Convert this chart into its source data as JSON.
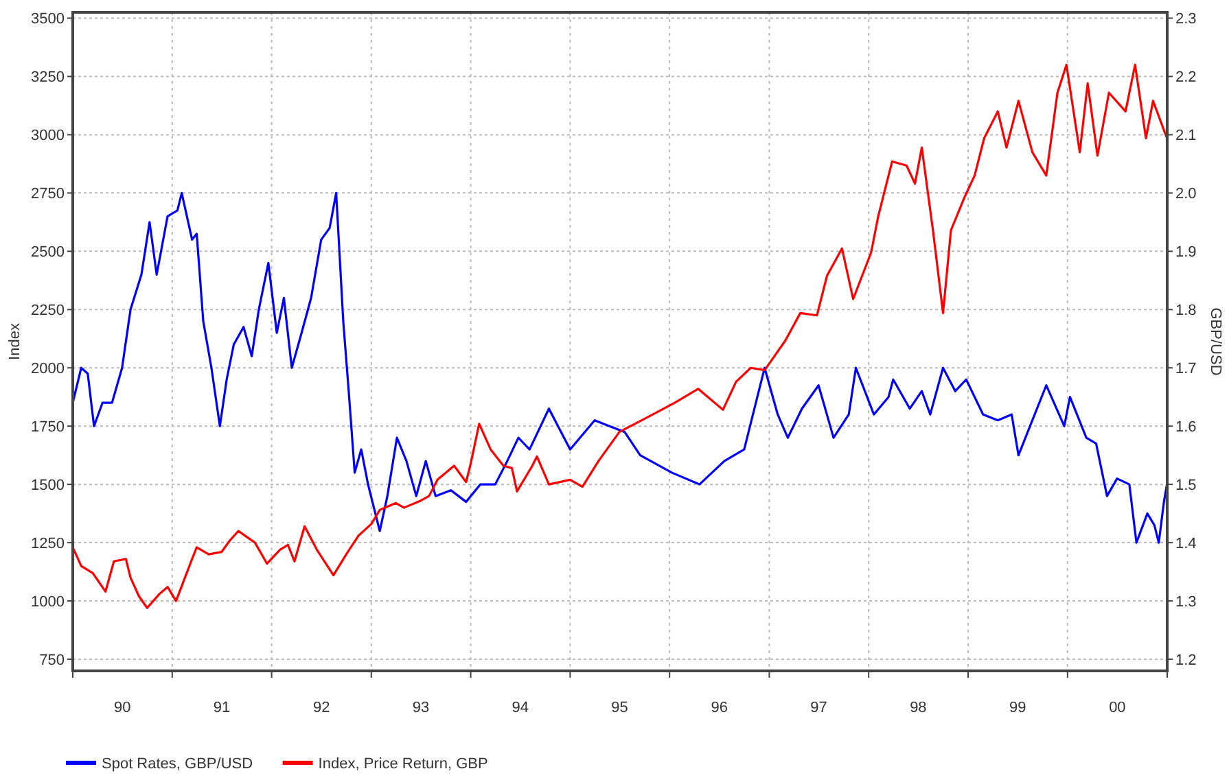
{
  "chart_data": {
    "type": "line",
    "ylabel": "Index",
    "y2label": "GBP/USD",
    "legend": "bottom",
    "grid": true,
    "marker": "none",
    "line_style": "solid",
    "xlim": [
      "1990-01-01",
      "2001-01-01"
    ],
    "xticks": [
      {
        "value": "1990-01-01",
        "label": null
      },
      {
        "value": "1990-07-02",
        "label": "90"
      },
      {
        "value": "1991-01-01",
        "label": null
      },
      {
        "value": "1991-07-02",
        "label": "91"
      },
      {
        "value": "1992-01-01",
        "label": null
      },
      {
        "value": "1992-07-02",
        "label": "92"
      },
      {
        "value": "1993-01-01",
        "label": null
      },
      {
        "value": "1993-07-02",
        "label": "93"
      },
      {
        "value": "1994-01-01",
        "label": null
      },
      {
        "value": "1994-07-02",
        "label": "94"
      },
      {
        "value": "1995-01-01",
        "label": null
      },
      {
        "value": "1995-07-02",
        "label": "95"
      },
      {
        "value": "1996-01-01",
        "label": null
      },
      {
        "value": "1996-07-02",
        "label": "96"
      },
      {
        "value": "1997-01-01",
        "label": null
      },
      {
        "value": "1997-07-02",
        "label": "97"
      },
      {
        "value": "1998-01-01",
        "label": null
      },
      {
        "value": "1998-07-02",
        "label": "98"
      },
      {
        "value": "1999-01-01",
        "label": null
      },
      {
        "value": "1999-07-02",
        "label": "99"
      },
      {
        "value": "2000-01-01",
        "label": null
      },
      {
        "value": "2000-07-02",
        "label": "00"
      },
      {
        "value": "2001-01-01",
        "label": null
      }
    ],
    "ylim": [
      700,
      3525
    ],
    "yticks": [
      750,
      1000,
      1250,
      1500,
      1750,
      2000,
      2250,
      2500,
      2750,
      3000,
      3250,
      3500
    ],
    "y2lim": [
      1.18,
      2.31
    ],
    "y2ticks": [
      1.2,
      1.3,
      1.4,
      1.5,
      1.6,
      1.7,
      1.8,
      1.9,
      {
        "value": 2,
        "label": "2.0"
      },
      2.1,
      2.2,
      2.3
    ],
    "series": [
      {
        "name": "Spot Rates, GBP/USD",
        "color": "#0000ff",
        "axis": "y2",
        "x": [
          "1990-01-01",
          "1990-02-01",
          "1990-02-25",
          "1990-03-20",
          "1990-04-20",
          "1990-05-25",
          "1990-07-01",
          "1990-08-01",
          "1990-09-10",
          "1990-10-10",
          "1990-11-05",
          "1990-12-15",
          "1991-01-20",
          "1991-02-05",
          "1991-03-15",
          "1991-04-01",
          "1991-04-25",
          "1991-05-25",
          "1991-06-25",
          "1991-07-20",
          "1991-08-15",
          "1991-09-20",
          "1991-10-20",
          "1991-11-15",
          "1991-12-20",
          "1992-01-20",
          "1992-02-15",
          "1992-03-15",
          "1992-04-20",
          "1992-05-25",
          "1992-07-01",
          "1992-08-01",
          "1992-08-25",
          "1992-09-20",
          "1992-10-10",
          "1992-11-01",
          "1992-11-25",
          "1992-12-20",
          "1993-02-01",
          "1993-03-01",
          "1993-04-05",
          "1993-05-10",
          "1993-06-15",
          "1993-07-20",
          "1993-08-25",
          "1993-10-20",
          "1993-12-15",
          "1994-02-05",
          "1994-04-01",
          "1994-05-15",
          "1994-06-25",
          "1994-08-05",
          "1994-10-15",
          "1995-01-01",
          "1995-04-01",
          "1995-05-25",
          "1995-07-20",
          "1995-09-15",
          "1996-01-10",
          "1996-04-20",
          "1996-07-20",
          "1996-10-01",
          "1996-12-15",
          "1997-02-01",
          "1997-03-10",
          "1997-05-01",
          "1997-07-01",
          "1997-08-25",
          "1997-10-20",
          "1997-11-15",
          "1998-01-20",
          "1998-03-15",
          "1998-04-01",
          "1998-06-01",
          "1998-07-15",
          "1998-08-15",
          "1998-10-01",
          "1998-11-15",
          "1998-12-25",
          "1999-02-25",
          "1999-04-20",
          "1999-06-10",
          "1999-07-05",
          "1999-08-25",
          "1999-10-15",
          "1999-12-20",
          "2000-01-10",
          "2000-03-10",
          "2000-04-15",
          "2000-05-25",
          "2000-07-01",
          "2000-08-15",
          "2000-09-10",
          "2000-10-20",
          "2000-11-15",
          "2000-12-01",
          "2000-12-20",
          "2000-12-31"
        ],
        "values": [
          1.64,
          1.7,
          1.69,
          1.6,
          1.64,
          1.64,
          1.7,
          1.8,
          1.86,
          1.95,
          1.86,
          1.96,
          1.97,
          2.0,
          1.92,
          1.93,
          1.78,
          1.7,
          1.6,
          1.68,
          1.74,
          1.77,
          1.72,
          1.8,
          1.88,
          1.76,
          1.82,
          1.7,
          1.76,
          1.82,
          1.92,
          1.94,
          2.0,
          1.78,
          1.66,
          1.52,
          1.56,
          1.5,
          1.42,
          1.48,
          1.58,
          1.54,
          1.48,
          1.54,
          1.48,
          1.49,
          1.47,
          1.5,
          1.5,
          1.54,
          1.58,
          1.56,
          1.63,
          1.56,
          1.61,
          1.6,
          1.59,
          1.55,
          1.52,
          1.5,
          1.54,
          1.56,
          1.7,
          1.62,
          1.58,
          1.63,
          1.67,
          1.58,
          1.62,
          1.7,
          1.62,
          1.65,
          1.68,
          1.63,
          1.66,
          1.62,
          1.7,
          1.66,
          1.68,
          1.62,
          1.61,
          1.62,
          1.55,
          1.61,
          1.67,
          1.6,
          1.65,
          1.58,
          1.57,
          1.48,
          1.51,
          1.5,
          1.4,
          1.45,
          1.43,
          1.4,
          1.47,
          1.5
        ]
      },
      {
        "name": "Index, Price Return, GBP",
        "color": "#ff0000",
        "x": [
          "1990-01-01",
          "1990-02-01",
          "1990-03-15",
          "1990-05-01",
          "1990-06-01",
          "1990-07-15",
          "1990-08-01",
          "1990-09-01",
          "1990-10-01",
          "1990-11-15",
          "1990-12-15",
          "1991-01-15",
          "1991-03-15",
          "1991-04-01",
          "1991-05-15",
          "1991-07-01",
          "1991-08-01",
          "1991-09-01",
          "1991-11-01",
          "1991-12-15",
          "1992-02-01",
          "1992-03-01",
          "1992-03-25",
          "1992-05-01",
          "1992-06-15",
          "1992-08-15",
          "1992-10-01",
          "1992-11-15",
          "1993-01-01",
          "1993-02-01",
          "1993-04-01",
          "1993-05-01",
          "1993-07-01",
          "1993-08-01",
          "1993-09-01",
          "1993-11-01",
          "1993-12-15",
          "1994-01-01",
          "1994-02-01",
          "1994-03-15",
          "1994-05-01",
          "1994-06-01",
          "1994-06-20",
          "1994-08-15",
          "1994-09-01",
          "1994-10-15",
          "1995-01-01",
          "1995-02-15",
          "1995-04-15",
          "1995-07-01",
          "1995-10-15",
          "1996-01-20",
          "1996-04-15",
          "1996-07-15",
          "1996-09-01",
          "1996-10-25",
          "1996-12-15",
          "1997-03-01",
          "1997-04-25",
          "1997-06-25",
          "1997-08-01",
          "1997-09-25",
          "1997-11-05",
          "1998-01-10",
          "1998-02-05",
          "1998-03-28",
          "1998-05-20",
          "1998-06-20",
          "1998-07-15",
          "1998-08-25",
          "1998-10-01",
          "1998-10-30",
          "1998-12-20",
          "1999-01-25",
          "1999-03-01",
          "1999-04-20",
          "1999-05-22",
          "1999-07-05",
          "1999-08-25",
          "1999-10-15",
          "1999-11-25",
          "1999-12-28",
          "2000-02-15",
          "2000-03-15",
          "2000-04-20",
          "2000-06-01",
          "2000-08-01",
          "2000-09-05",
          "2000-10-15",
          "2000-11-10",
          "2000-12-31"
        ],
        "values": [
          1230,
          1150,
          1120,
          1040,
          1170,
          1180,
          1100,
          1020,
          970,
          1030,
          1060,
          1000,
          1180,
          1230,
          1200,
          1210,
          1260,
          1300,
          1250,
          1160,
          1220,
          1240,
          1170,
          1320,
          1220,
          1110,
          1200,
          1280,
          1330,
          1390,
          1420,
          1400,
          1430,
          1450,
          1520,
          1580,
          1510,
          1590,
          1760,
          1650,
          1580,
          1570,
          1470,
          1580,
          1620,
          1500,
          1520,
          1490,
          1600,
          1725,
          1790,
          1850,
          1910,
          1820,
          1940,
          2000,
          1990,
          2117,
          2235,
          2225,
          2395,
          2512,
          2295,
          2495,
          2650,
          2885,
          2868,
          2790,
          2945,
          2590,
          2235,
          2590,
          2735,
          2825,
          2985,
          3100,
          2945,
          3145,
          2925,
          2825,
          3180,
          3300,
          2925,
          3220,
          2910,
          3180,
          3100,
          3300,
          2985,
          3145,
          2985
        ]
      }
    ]
  }
}
